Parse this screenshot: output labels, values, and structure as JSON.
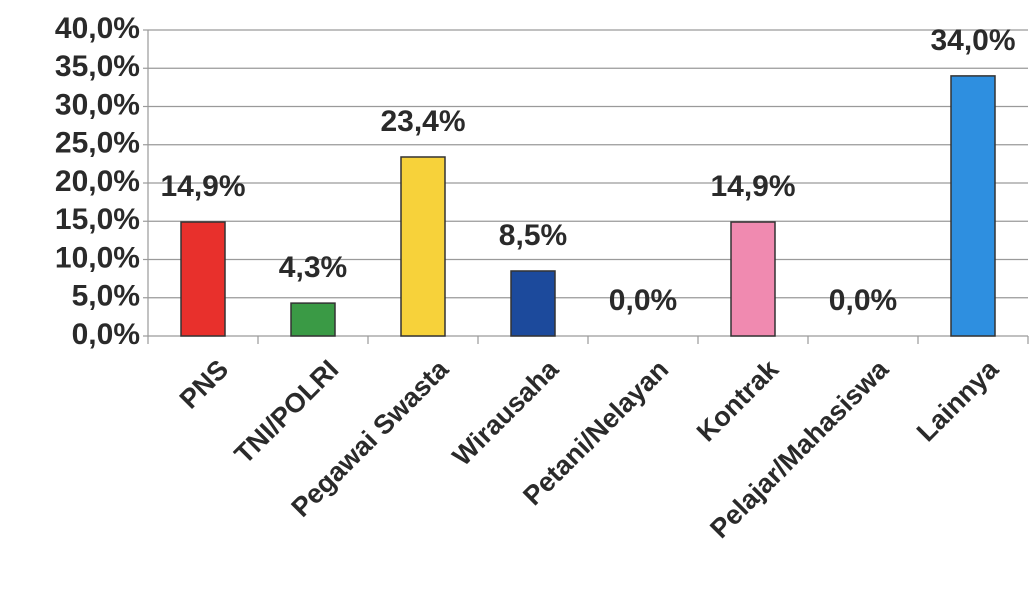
{
  "chart_data": {
    "type": "bar",
    "categories": [
      "PNS",
      "TNI/POLRI",
      "Pegawai Swasta",
      "Wirausaha",
      "Petani/Nelayan",
      "Kontrak",
      "Pelajar/Mahasiswa",
      "Lainnya"
    ],
    "values": [
      14.9,
      4.3,
      23.4,
      8.5,
      0,
      14.9,
      0,
      34.0
    ],
    "value_labels": [
      "14,9%",
      "4,3%",
      "23,4%",
      "8,5%",
      "0,0%",
      "14,9%",
      "0,0%",
      "34,0%"
    ],
    "colors": [
      "#e8302c",
      "#3a9a45",
      "#f7d23a",
      "#1c4a9c",
      null,
      "#f08ab0",
      null,
      "#2e8fe0"
    ],
    "ylim": [
      0,
      40
    ],
    "yticks": [
      {
        "value": 0,
        "label": "0,0%"
      },
      {
        "value": 5,
        "label": "5,0%"
      },
      {
        "value": 10,
        "label": "10,0%"
      },
      {
        "value": 15,
        "label": "15,0%"
      },
      {
        "value": 20,
        "label": "20,0%"
      },
      {
        "value": 25,
        "label": "25,0%"
      },
      {
        "value": 30,
        "label": "30,0%"
      },
      {
        "value": 35,
        "label": "35,0%"
      },
      {
        "value": 40,
        "label": "40,0%"
      }
    ],
    "grid": true
  }
}
